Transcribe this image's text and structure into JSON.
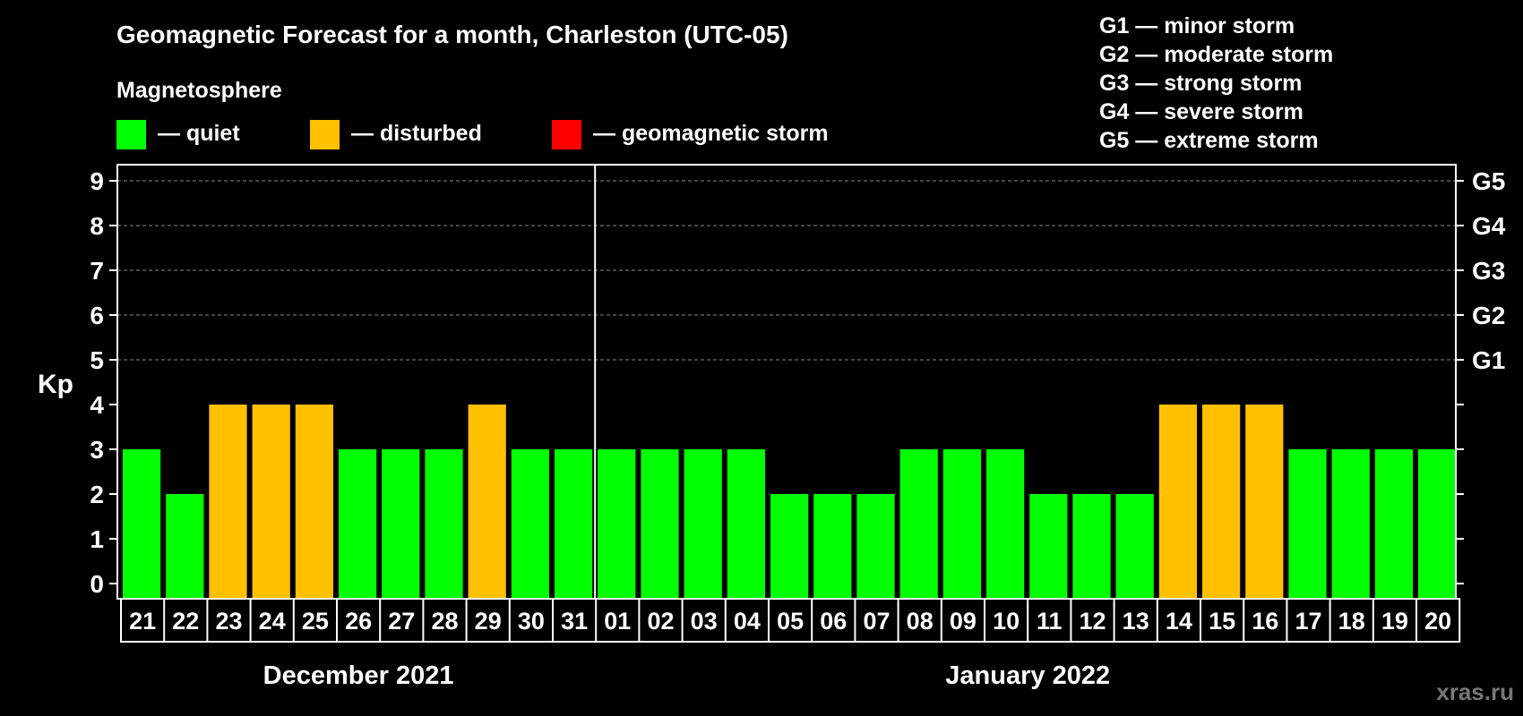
{
  "colors": {
    "quiet": "#00ff00",
    "disturbed": "#ffc000",
    "storm": "#ff0000",
    "background": "#000000"
  },
  "chart_data": {
    "type": "bar",
    "title": "Geomagnetic Forecast for a month, Charleston (UTC-05)",
    "ylabel": "Kp",
    "ylim": [
      0,
      9
    ],
    "yticks": [
      "0",
      "1",
      "2",
      "3",
      "4",
      "5",
      "6",
      "7",
      "8",
      "9"
    ],
    "gscale": [
      {
        "kp": 5,
        "label": "G1"
      },
      {
        "kp": 6,
        "label": "G2"
      },
      {
        "kp": 7,
        "label": "G3"
      },
      {
        "kp": 8,
        "label": "G4"
      },
      {
        "kp": 9,
        "label": "G5"
      }
    ],
    "categories": [
      "21",
      "22",
      "23",
      "24",
      "25",
      "26",
      "27",
      "28",
      "29",
      "30",
      "31",
      "01",
      "02",
      "03",
      "04",
      "05",
      "06",
      "07",
      "08",
      "09",
      "10",
      "11",
      "12",
      "13",
      "14",
      "15",
      "16",
      "17",
      "18",
      "19",
      "20"
    ],
    "values": [
      3,
      2,
      4,
      4,
      4,
      3,
      3,
      3,
      4,
      3,
      3,
      3,
      3,
      3,
      3,
      2,
      2,
      2,
      3,
      3,
      3,
      2,
      2,
      2,
      4,
      4,
      4,
      3,
      3,
      3,
      3
    ],
    "months": [
      {
        "label": "December 2021",
        "start": 0,
        "count": 11
      },
      {
        "label": "January 2022",
        "start": 11,
        "count": 20
      }
    ],
    "legend": {
      "heading": "Magnetosphere",
      "items": [
        {
          "key": "quiet",
          "label": "— quiet"
        },
        {
          "key": "disturbed",
          "label": "— disturbed"
        },
        {
          "key": "storm",
          "label": "— geomagnetic storm"
        }
      ],
      "storm_levels": [
        "G1 — minor storm",
        "G2 — moderate storm",
        "G3 — strong storm",
        "G4 — severe storm",
        "G5 — extreme storm"
      ]
    }
  },
  "watermark": "xras.ru"
}
